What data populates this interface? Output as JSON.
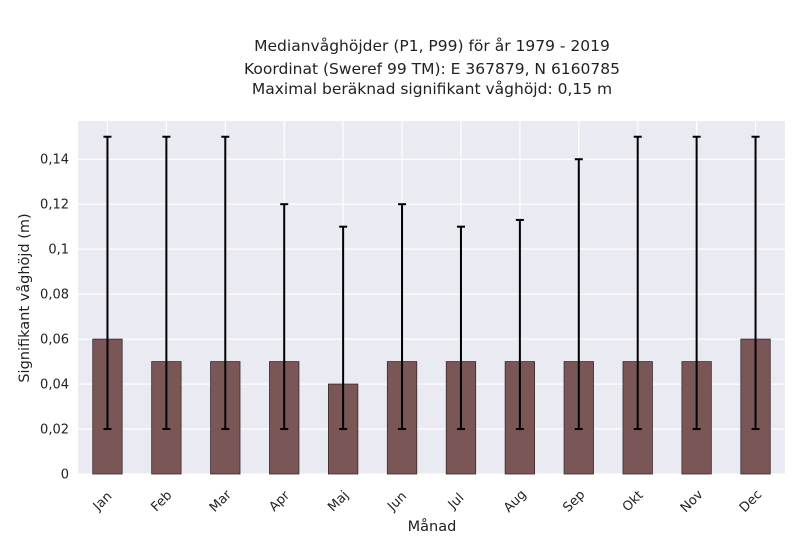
{
  "chart_data": {
    "type": "bar",
    "title_lines": [
      "Medianvåghöjder (P1, P99) för år 1979 - 2019",
      "Koordinat (Sweref 99 TM): E 367879, N 6160785",
      "Maximal beräknad signifikant våghöjd: 0,15 m"
    ],
    "xlabel": "Månad",
    "ylabel": "Signifikant våghöjd (m)",
    "categories": [
      "Jan",
      "Feb",
      "Mar",
      "Apr",
      "Maj",
      "Jun",
      "Jul",
      "Aug",
      "Sep",
      "Okt",
      "Nov",
      "Dec"
    ],
    "values": [
      0.06,
      0.05,
      0.05,
      0.05,
      0.04,
      0.05,
      0.05,
      0.05,
      0.05,
      0.05,
      0.05,
      0.06
    ],
    "p1": [
      0.02,
      0.02,
      0.02,
      0.02,
      0.02,
      0.02,
      0.02,
      0.02,
      0.02,
      0.02,
      0.02,
      0.02
    ],
    "p99": [
      0.15,
      0.15,
      0.15,
      0.12,
      0.11,
      0.12,
      0.11,
      0.113,
      0.14,
      0.15,
      0.15,
      0.15
    ],
    "ylim": [
      0,
      0.157
    ],
    "yticks": [
      0,
      0.02,
      0.04,
      0.06,
      0.08,
      0.1,
      0.12,
      0.14
    ],
    "ytick_labels": [
      "0",
      "0,02",
      "0,04",
      "0,06",
      "0,08",
      "0,1",
      "0,12",
      "0,14"
    ],
    "grid": true,
    "legend": "none"
  },
  "colors": {
    "plot_background": "#eaeaf2",
    "grid": "#ffffff",
    "bar_fill": "#7a5656",
    "bar_edge": "#3a2a2a",
    "error_bar": "#000000",
    "text": "#222222"
  }
}
